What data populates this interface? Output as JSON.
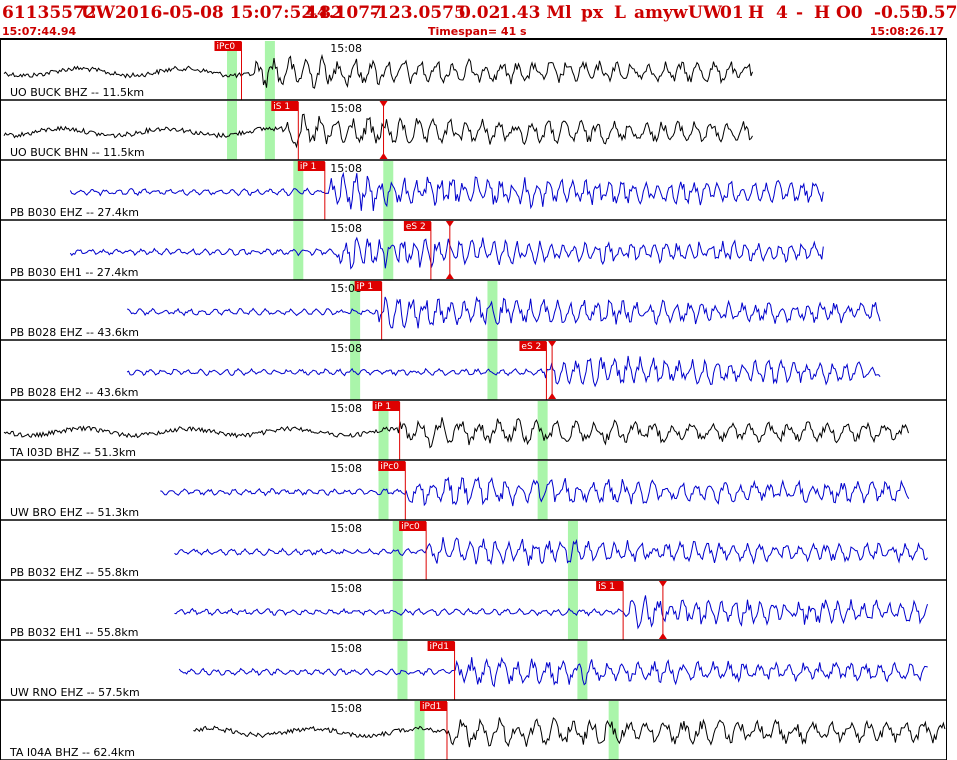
{
  "header": {
    "event_id": "61135572",
    "network": "UW",
    "datetime": "2016-05-08 15:07:52.82",
    "latitude": "44.1077",
    "longitude": "-123.0575",
    "depth": "0.02",
    "magnitude": "1.43 Ml",
    "status": "px",
    "type": "L",
    "author": "amyw",
    "net_code": "UW",
    "version": "01",
    "flag_h": "H",
    "count": "4",
    "dash": "-",
    "quality": "H O0",
    "value_a": "-0.55",
    "value_b": "0.57",
    "time_start": "15:07:44.94",
    "timespan": "Timespan=  41 s",
    "time_end": "15:08:26.17"
  },
  "colors": {
    "header_red": "#cc0000",
    "trace_black": "#000000",
    "trace_blue": "#0000cc",
    "pick_red": "#dd0000",
    "window_green": "#aaf5aa"
  },
  "time_tick_label": "15:08",
  "panels": [
    {
      "label": "UO BUCK BHZ -- 11.5km",
      "color": "black",
      "start": 0.0,
      "end": 0.795,
      "onset": 0.27,
      "amp": 0.6,
      "freq": 0.9,
      "green": [
        0.245,
        0.285
      ],
      "picks": [
        {
          "text": "iPc0",
          "pos": 0.255,
          "arrow": false
        }
      ]
    },
    {
      "label": "UO BUCK BHN -- 11.5km",
      "color": "black",
      "start": 0.0,
      "end": 0.795,
      "onset": 0.3,
      "amp": 0.6,
      "freq": 0.9,
      "green": [
        0.245,
        0.285
      ],
      "picks": [
        {
          "text": "iS 1",
          "pos": 0.315,
          "arrow": true,
          "arrow_pos": 0.405
        }
      ]
    },
    {
      "label": "PB B030 EHZ -- 27.4km",
      "color": "blue",
      "start": 0.07,
      "end": 0.87,
      "onset": 0.345,
      "amp": 0.7,
      "freq": 1.8,
      "green": [
        0.315,
        0.41
      ],
      "picks": [
        {
          "text": "iP 1",
          "pos": 0.343,
          "arrow": false,
          "arrow_pos": 0.405
        }
      ]
    },
    {
      "label": "PB B030 EH1 -- 27.4km",
      "color": "blue",
      "start": 0.07,
      "end": 0.87,
      "onset": 0.355,
      "amp": 0.6,
      "freq": 2.0,
      "green": [
        0.315,
        0.41
      ],
      "picks": [
        {
          "text": "eS 2",
          "pos": 0.455,
          "arrow": true,
          "arrow_pos": 0.475
        }
      ]
    },
    {
      "label": "PB B028 EHZ -- 43.6km",
      "color": "blue",
      "start": 0.13,
      "end": 0.93,
      "onset": 0.4,
      "amp": 0.6,
      "freq": 1.5,
      "green": [
        0.375,
        0.52
      ],
      "picks": [
        {
          "text": "iP 1",
          "pos": 0.403,
          "arrow": false
        }
      ]
    },
    {
      "label": "PB B028 EH2 -- 43.6km",
      "color": "blue",
      "start": 0.13,
      "end": 0.93,
      "onset": 0.575,
      "amp": 0.6,
      "freq": 1.6,
      "green": [
        0.375,
        0.52
      ],
      "picks": [
        {
          "text": "eS 2",
          "pos": 0.577,
          "arrow": true,
          "arrow_pos": 0.583
        }
      ]
    },
    {
      "label": "TA I03D BHZ -- 51.3km",
      "color": "black",
      "start": 0.0,
      "end": 0.96,
      "onset": 0.42,
      "amp": 0.55,
      "freq": 0.5,
      "green": [
        0.405,
        0.573
      ],
      "picks": [
        {
          "text": "iP 1",
          "pos": 0.422,
          "arrow": false
        }
      ]
    },
    {
      "label": "UW BRO EHZ -- 51.3km",
      "color": "blue",
      "start": 0.165,
      "end": 0.96,
      "onset": 0.43,
      "amp": 0.6,
      "freq": 1.2,
      "green": [
        0.405,
        0.573
      ],
      "picks": [
        {
          "text": "iPc0",
          "pos": 0.428,
          "arrow": false
        }
      ]
    },
    {
      "label": "PB B032 EHZ -- 55.8km",
      "color": "blue",
      "start": 0.18,
      "end": 0.98,
      "onset": 0.45,
      "amp": 0.55,
      "freq": 1.5,
      "green": [
        0.42,
        0.605
      ],
      "picks": [
        {
          "text": "iPc0",
          "pos": 0.45,
          "arrow": false
        }
      ]
    },
    {
      "label": "PB B032 EH1 -- 55.8km",
      "color": "blue",
      "start": 0.18,
      "end": 0.98,
      "onset": 0.66,
      "amp": 0.6,
      "freq": 1.6,
      "green": [
        0.42,
        0.605
      ],
      "picks": [
        {
          "text": "iS 1",
          "pos": 0.658,
          "arrow": true,
          "arrow_pos": 0.7
        }
      ]
    },
    {
      "label": "UW RNO EHZ -- 57.5km",
      "color": "blue",
      "start": 0.185,
      "end": 0.98,
      "onset": 0.48,
      "amp": 0.55,
      "freq": 1.1,
      "green": [
        0.425,
        0.615
      ],
      "picks": [
        {
          "text": "iPd1",
          "pos": 0.48,
          "arrow": false
        }
      ]
    },
    {
      "label": "TA I04A BHZ -- 62.4km",
      "color": "black",
      "start": 0.2,
      "end": 1.0,
      "onset": 0.475,
      "amp": 0.6,
      "freq": 0.6,
      "green": [
        0.443,
        0.648
      ],
      "picks": [
        {
          "text": "iPd1",
          "pos": 0.472,
          "arrow": false
        }
      ]
    }
  ]
}
